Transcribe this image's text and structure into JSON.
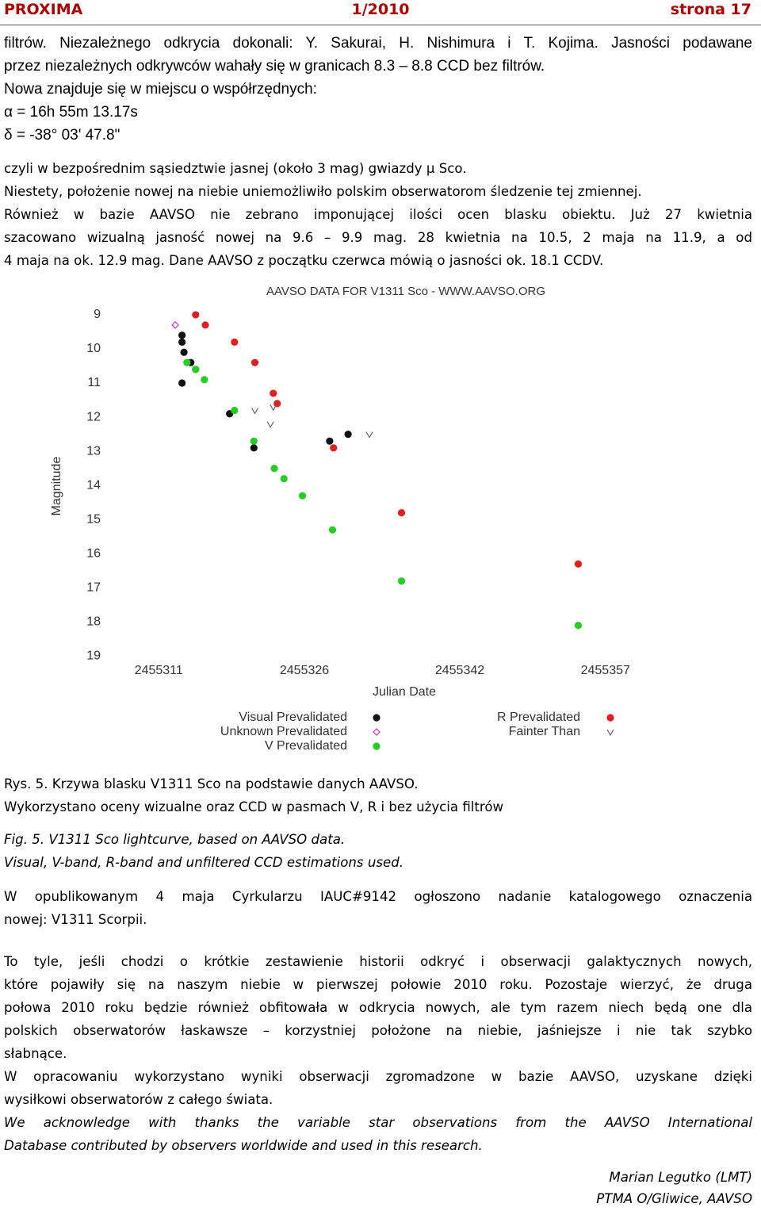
{
  "header": {
    "left": "PROXIMA",
    "center": "1/2010",
    "right": "strona 17"
  },
  "intro": [
    "filtrów. Niezależnego odkrycia dokonali: Y. Sakurai, H. Nishimura i T. Kojima. Jasności podawane",
    "przez niezależnych odkrywców wahały się w granicach 8.3 – 8.8 CCD bez filtrów.",
    "Nowa znajduje się w miejscu o współrzędnych:",
    "α = 16h 55m 13.17s",
    "δ = -38° 03' 47.8\""
  ],
  "body1": [
    "czyli w bezpośrednim sąsiedztwie jasnej (około 3 mag) gwiazdy μ Sco.",
    "Niestety, położenie nowej na niebie uniemożliwiło polskim obserwatorom śledzenie tej zmiennej.",
    "Również w bazie AAVSO nie zebrano imponującej ilości ocen blasku obiektu. Już 27 kwietnia",
    "szacowano wizualną jasność nowej na 9.6 – 9.9 mag. 28 kwietnia na 10.5, 2 maja na 11.9, a od",
    "4 maja na ok. 12.9 mag. Dane AAVSO z początku czerwca mówią o jasności ok. 18.1 CCDV."
  ],
  "chart_data": {
    "type": "scatter",
    "title": "AAVSO DATA FOR V1311 Sco - WWW.AAVSO.ORG",
    "x_label": "Julian Date",
    "y_label": "Magnitude",
    "xlim": [
      2455306,
      2455362
    ],
    "xticks": [
      2455311,
      2455326,
      2455342,
      2455357
    ],
    "ylim": [
      8.7,
      19.2
    ],
    "yticks": [
      9,
      10,
      11,
      12,
      13,
      14,
      15,
      16,
      17,
      18,
      19
    ],
    "y_inverted": true,
    "grid": false,
    "series": [
      {
        "name": "Visual Prevalidated",
        "color": "#111111",
        "marker": "circle",
        "x": [
          2455313.4,
          2455313.4,
          2455313.6,
          2455314.3,
          2455314.8,
          2455313.4,
          2455318.3,
          2455320.8,
          2455328.6,
          2455330.5
        ],
        "values": [
          9.6,
          9.8,
          10.1,
          10.4,
          10.6,
          11.0,
          11.9,
          12.9,
          12.7,
          12.5
        ]
      },
      {
        "name": "Unknown Prevalidated",
        "color": "#d040d0",
        "marker": "diamond",
        "x": [
          2455312.7
        ],
        "values": [
          9.3
        ]
      },
      {
        "name": "V Prevalidated",
        "color": "#22d022",
        "marker": "circle",
        "x": [
          2455313.9,
          2455314.8,
          2455315.7,
          2455318.8,
          2455320.8,
          2455322.9,
          2455323.9,
          2455325.8,
          2455328.9,
          2455336.0,
          2455354.2
        ],
        "values": [
          10.4,
          10.6,
          10.9,
          11.8,
          12.7,
          13.5,
          13.8,
          14.3,
          15.3,
          16.8,
          18.1
        ]
      },
      {
        "name": "R Prevalidated",
        "color": "#e02020",
        "marker": "circle",
        "x": [
          2455314.8,
          2455315.8,
          2455318.8,
          2455320.9,
          2455322.8,
          2455323.2,
          2455329.0,
          2455336.0,
          2455354.2
        ],
        "values": [
          9.0,
          9.3,
          9.8,
          10.4,
          11.3,
          11.6,
          12.9,
          14.8,
          16.3
        ]
      },
      {
        "name": "Fainter Than",
        "color": "#666666",
        "marker": "v",
        "x": [
          2455320.9,
          2455322.8,
          2455322.5,
          2455332.7
        ],
        "values": [
          11.8,
          11.7,
          12.2,
          12.5
        ]
      }
    ]
  },
  "caption_pl": [
    "Rys. 5. Krzywa blasku V1311 Sco na podstawie danych AAVSO.",
    "Wykorzystano oceny wizualne oraz CCD w pasmach V, R i bez użycia filtrów"
  ],
  "caption_en": [
    "Fig. 5. V1311 Sco lightcurve, based on AAVSO data.",
    "Visual, V-band, R-band and unfiltered CCD estimations used."
  ],
  "body2": [
    "W opublikowanym 4 maja Cyrkularzu IAUC#9142 ogłoszono nadanie katalogowego oznaczenia",
    "nowej: V1311 Scorpii."
  ],
  "body3": [
    "To tyle, jeśli chodzi o krótkie zestawienie historii odkryć i obserwacji galaktycznych nowych,",
    "które pojawiły się na naszym niebie w pierwszej połowie 2010 roku. Pozostaje wierzyć, że druga",
    "połowa 2010 roku będzie również obfitowała w odkrycia nowych, ale tym razem niech będą one dla",
    "polskich obserwatorów łaskawsze – korzystniej położone na niebie, jaśniejsze i nie tak szybko",
    "słabnące."
  ],
  "body4": [
    "W opracowaniu wykorzystano wyniki obserwacji zgromadzone w bazie AAVSO, uzyskane dzięki",
    "wysiłkowi obserwatorów z całego świata."
  ],
  "acknowledgement": [
    "We acknowledge with thanks the variable star observations from the AAVSO International",
    "Database contributed by observers worldwide and used in this research."
  ],
  "signature": [
    "Marian Legutko (LMT)",
    "PTMA O/Gliwice, AAVSO"
  ]
}
